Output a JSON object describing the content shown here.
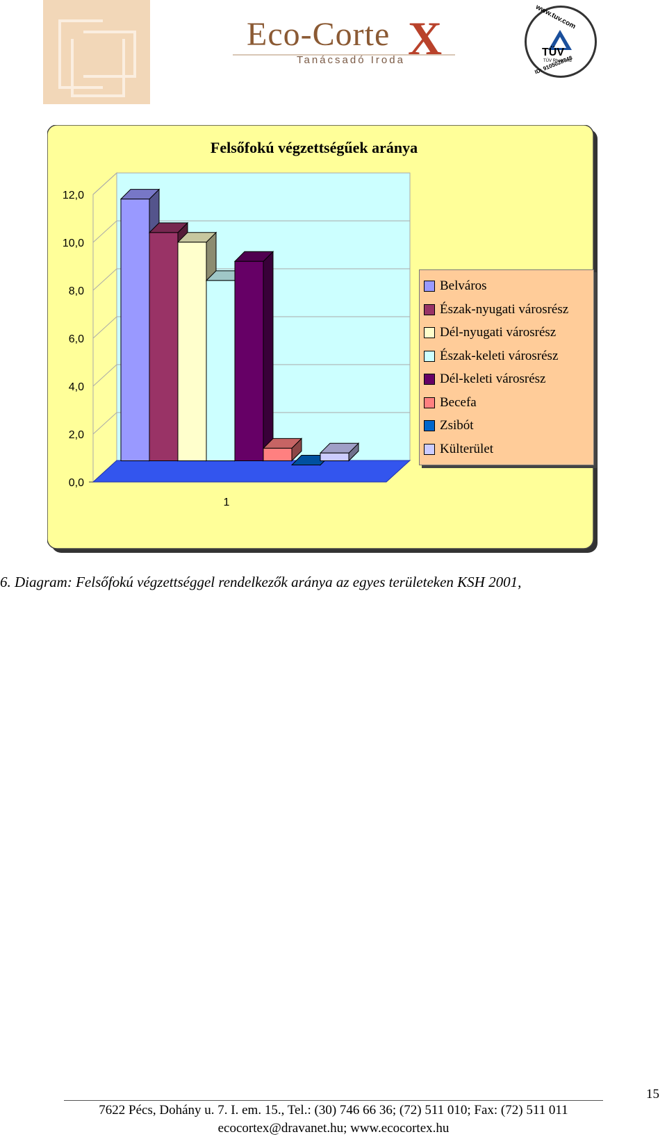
{
  "header": {
    "logo_title": "Eco-Corte",
    "logo_x": "X",
    "logo_subtitle": "Tanácsadó Iroda",
    "badge_url": "www.tuv.com",
    "badge_name": "TÜV",
    "badge_org": "TÜV Rheinland",
    "badge_id": "ID: 9105028748"
  },
  "chart_data": {
    "type": "bar",
    "title": "Felsőfokú végzettségűek aránya",
    "categories": [
      "1"
    ],
    "ylim": [
      0,
      12
    ],
    "yticks": [
      "0,0",
      "2,0",
      "4,0",
      "6,0",
      "8,0",
      "10,0",
      "12,0"
    ],
    "grid": true,
    "legend_position": "right",
    "series": [
      {
        "name": "Belváros",
        "values": [
          11.2
        ],
        "color": "#9999ff"
      },
      {
        "name": "Észak-nyugati városrész",
        "values": [
          9.8
        ],
        "color": "#993366"
      },
      {
        "name": "Dél-nyugati városrész",
        "values": [
          9.4
        ],
        "color": "#ffffcc"
      },
      {
        "name": "Észak-keleti városrész",
        "values": [
          7.8
        ],
        "color": "#ccffff"
      },
      {
        "name": "Dél-keleti városrész",
        "values": [
          8.6
        ],
        "color": "#660066"
      },
      {
        "name": "Becefa",
        "values": [
          0.8
        ],
        "color": "#ff8080"
      },
      {
        "name": "Zsibót",
        "values": [
          0.1
        ],
        "color": "#0066cc"
      },
      {
        "name": "Külterület",
        "values": [
          0.6
        ],
        "color": "#ccccff"
      }
    ]
  },
  "caption": "6. Diagram: Felsőfokú végzettséggel rendelkezők aránya az egyes területeken KSH 2001,",
  "page_number": "15",
  "footer": {
    "address": "7622 Pécs, Dohány u. 7. I. em. 15., Tel.: (30) 746 66 36; (72) 511 010; Fax: (72) 511 011",
    "contact": "ecocortex@dravanet.hu; www.ecocortex.hu"
  }
}
